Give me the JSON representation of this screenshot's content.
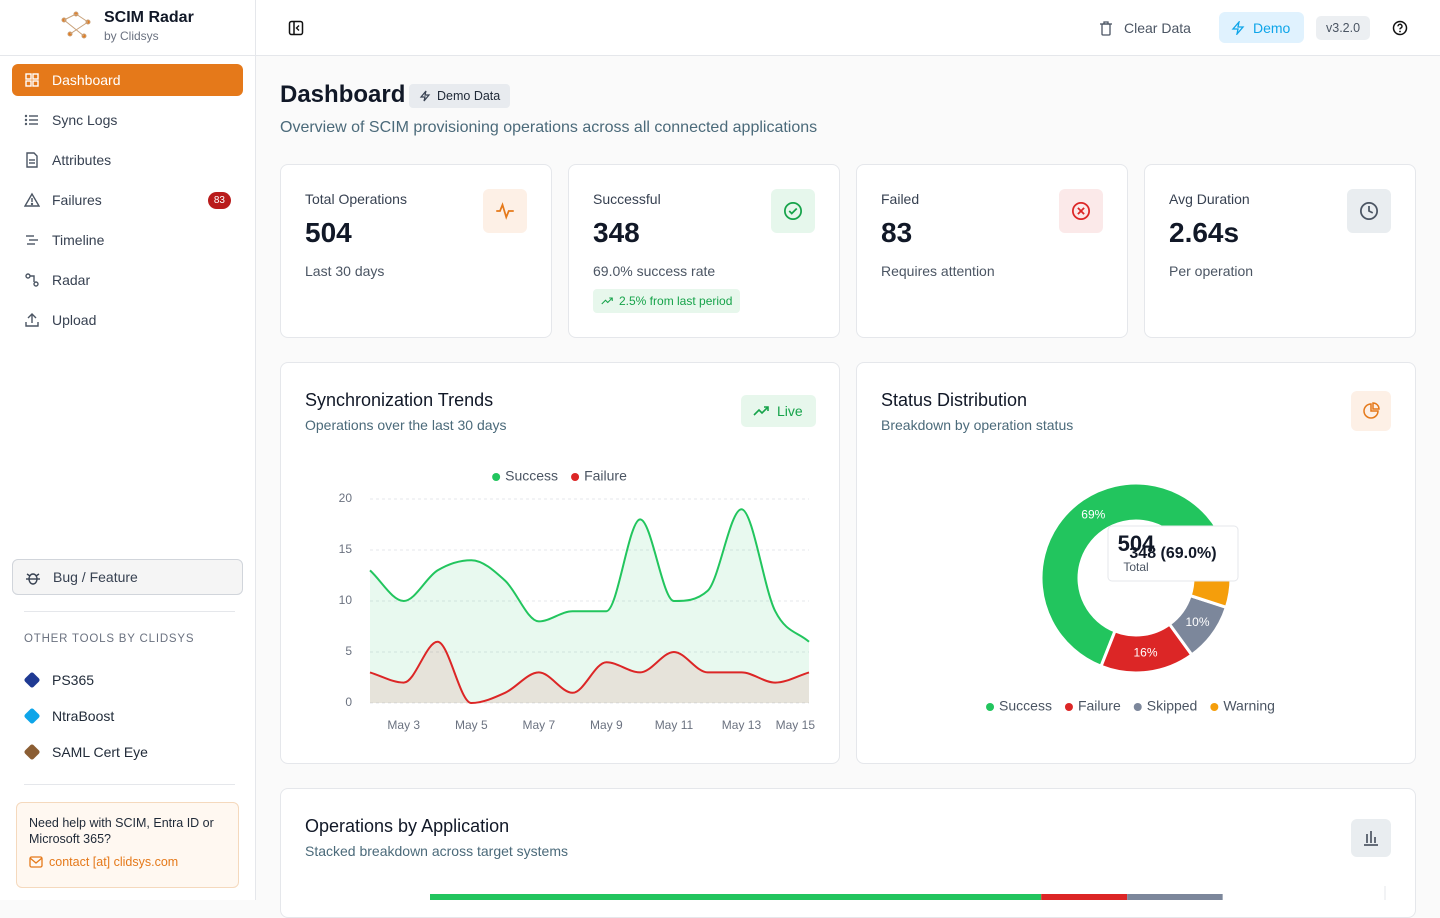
{
  "sidebar": {
    "brand": "SCIM Radar",
    "byline": "by Clidsys",
    "nav": [
      {
        "label": "Dashboard"
      },
      {
        "label": "Sync Logs"
      },
      {
        "label": "Attributes"
      },
      {
        "label": "Failures",
        "badge": 83
      },
      {
        "label": "Timeline"
      },
      {
        "label": "Radar"
      },
      {
        "label": "Upload"
      }
    ],
    "feedback": "Bug / Feature",
    "other_tools_title": "OTHER TOOLS BY CLIDSYS",
    "tools": [
      "PS365",
      "NtraBoost",
      "SAML Cert Eye"
    ],
    "help_text": "Need help with SCIM, Entra ID or Microsoft 365?",
    "contact": "contact [at] clidsys.com"
  },
  "header": {
    "clear": "Clear Data",
    "demo": "Demo",
    "version": "v3.2.0"
  },
  "page": {
    "title": "Dashboard",
    "badge": "Demo Data",
    "subtitle": "Overview of SCIM provisioning operations across all connected applications"
  },
  "stats": [
    {
      "label": "Total Operations",
      "value": 504,
      "note": "Last 30 days"
    },
    {
      "label": "Successful",
      "value": 348,
      "note": "69.0% success rate",
      "trend": "2.5% from last period"
    },
    {
      "label": "Failed",
      "value": 83,
      "note": "Requires attention"
    },
    {
      "label": "Avg Duration",
      "value": "2.64s",
      "note": "Per operation"
    }
  ],
  "chart_data": [
    {
      "type": "area",
      "title": "Synchronization Trends",
      "subtitle": "Operations over the last 30 days",
      "status": "Live",
      "categories": [
        null,
        "May 3",
        null,
        "May 5",
        null,
        "May 7",
        null,
        "May 9",
        null,
        "May 11",
        null,
        "May 13",
        null,
        "May 15"
      ],
      "series": [
        {
          "name": "Success",
          "color": "#22c55e",
          "values": [
            13,
            10,
            13,
            14,
            12,
            8,
            9,
            9,
            18,
            10,
            11,
            19,
            9,
            6
          ]
        },
        {
          "name": "Failure",
          "color": "#dc2626",
          "values": [
            3,
            2,
            6,
            0,
            1,
            3,
            1,
            4,
            3,
            5,
            3,
            3,
            2,
            3
          ]
        }
      ],
      "ylim": [
        0,
        20
      ],
      "yticks": [
        0,
        5,
        10,
        15,
        20
      ],
      "grid": true,
      "legend": "top"
    },
    {
      "type": "donut",
      "title": "Status Distribution",
      "subtitle": "Breakdown by operation status",
      "categories": [
        "Success",
        "Failure",
        "Skipped",
        "Warning"
      ],
      "values": [
        69,
        16,
        10,
        5
      ],
      "value_labels": [
        "69%",
        "16%",
        "10%",
        null
      ],
      "colors": [
        "#22c55e",
        "#dc2626",
        "#7c879b",
        "#f59e0b"
      ],
      "center": {
        "value": 504,
        "label": "Total"
      },
      "tooltip": "348 (69.0%)",
      "legend": "bottom"
    },
    {
      "type": "bar",
      "title": "Operations by Application",
      "subtitle": "Stacked breakdown across target systems",
      "orientation": "horizontal",
      "stacked": true,
      "categories": [
        null
      ],
      "xlim": [
        0,
        100
      ],
      "series": [
        {
          "color": "#22c55e",
          "values": [
            64
          ]
        },
        {
          "color": "#dc2626",
          "values": [
            9
          ]
        },
        {
          "color": "#7c879b",
          "values": [
            10
          ]
        }
      ]
    }
  ]
}
